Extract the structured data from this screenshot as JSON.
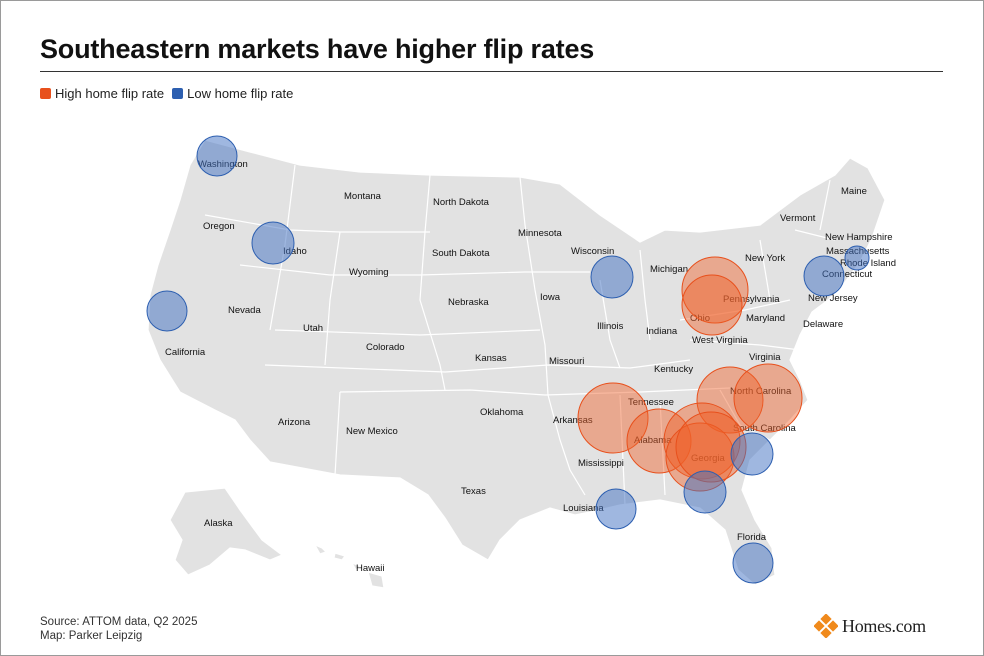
{
  "title": "Southeastern markets have higher flip rates",
  "legend": {
    "high": {
      "label": "High home flip rate",
      "color": "#e8501c"
    },
    "low": {
      "label": "Low home flip rate",
      "color": "#2d5fb0"
    }
  },
  "state_labels": [
    "Washington",
    "Montana",
    "North Dakota",
    "Maine",
    "Oregon",
    "Minnesota",
    "Vermont",
    "Idaho",
    "South Dakota",
    "Wisconsin",
    "New Hampshire",
    "Massachusetts",
    "Rhode Island",
    "Wyoming",
    "Michigan",
    "New York",
    "Connecticut",
    "Nevada",
    "Nebraska",
    "Iowa",
    "Pennsylvania",
    "New Jersey",
    "Utah",
    "Ohio",
    "Maryland",
    "Delaware",
    "Illinois",
    "Indiana",
    "California",
    "Colorado",
    "West Virginia",
    "Virginia",
    "Kansas",
    "Missouri",
    "Kentucky",
    "North Carolina",
    "Tennessee",
    "Arizona",
    "Oklahoma",
    "Arkansas",
    "South Carolina",
    "New Mexico",
    "Alabama",
    "Georgia",
    "Mississippi",
    "Texas",
    "Louisiana",
    "Florida",
    "Alaska",
    "Hawaii"
  ],
  "markers": [
    {
      "market": "Washington",
      "flip_rate": "low"
    },
    {
      "market": "Idaho",
      "flip_rate": "low"
    },
    {
      "market": "California",
      "flip_rate": "low"
    },
    {
      "market": "Wisconsin",
      "flip_rate": "low"
    },
    {
      "market": "Connecticut",
      "flip_rate": "low"
    },
    {
      "market": "Rhode Island",
      "flip_rate": "low"
    },
    {
      "market": "Pennsylvania",
      "flip_rate": "high"
    },
    {
      "market": "Ohio",
      "flip_rate": "high"
    },
    {
      "market": "Tennessee",
      "flip_rate": "high"
    },
    {
      "market": "North Carolina",
      "flip_rate": "high"
    },
    {
      "market": "Alabama",
      "flip_rate": "high"
    },
    {
      "market": "Georgia",
      "flip_rate": "high"
    },
    {
      "market": "South Carolina",
      "flip_rate": "low"
    },
    {
      "market": "Louisiana",
      "flip_rate": "low"
    },
    {
      "market": "Florida",
      "flip_rate": "low"
    }
  ],
  "footer": {
    "source": "Source: ATTOM data, Q2 2025",
    "credit": "Map: Parker Leipzig"
  },
  "brand": {
    "name": "Homes.com"
  }
}
